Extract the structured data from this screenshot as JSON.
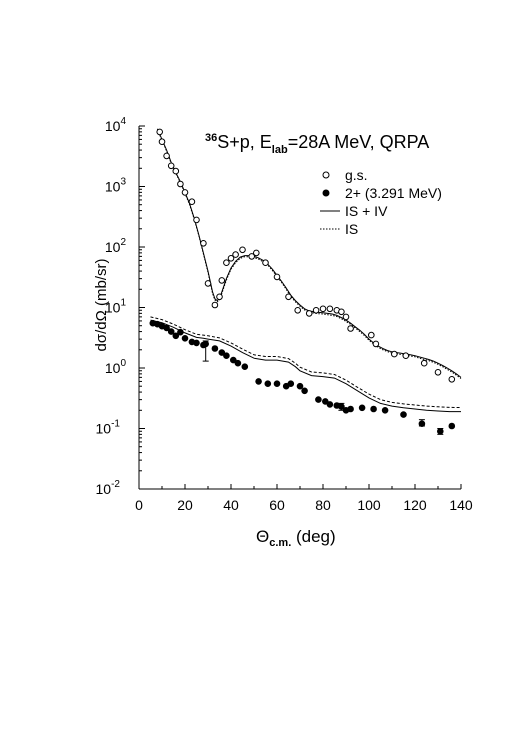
{
  "chart_data": {
    "type": "scatter",
    "title": {
      "mass": "36",
      "pre": "S+p, E",
      "sub": "lab",
      "post": "=28A MeV, QRPA"
    },
    "xlabel": {
      "main": "Θ",
      "sub": "c.m.",
      "unit": " (deg)"
    },
    "ylabel": "dσ/dΩ (mb/sr)",
    "xlim": [
      0,
      140
    ],
    "ylim": [
      0.01,
      10000
    ],
    "yscale": "log",
    "xticks": [
      0,
      20,
      40,
      60,
      80,
      100,
      120,
      140
    ],
    "yticks": [
      {
        "base": "10",
        "exp": "-2"
      },
      {
        "base": "10",
        "exp": "-1"
      },
      {
        "base": "10",
        "exp": "0"
      },
      {
        "base": "10",
        "exp": "1"
      },
      {
        "base": "10",
        "exp": "2"
      },
      {
        "base": "10",
        "exp": "3"
      },
      {
        "base": "10",
        "exp": "4"
      }
    ],
    "legend": {
      "position": "top-right",
      "entries": [
        {
          "label": "g.s.",
          "style": "open-circle"
        },
        {
          "label": "2+ (3.291 MeV)",
          "style": "filled-circle"
        },
        {
          "label": "IS + IV",
          "style": "solid-line"
        },
        {
          "label": "IS",
          "style": "dotted-line"
        }
      ]
    },
    "series": [
      {
        "name": "g.s.",
        "kind": "points",
        "marker": "open-circle",
        "x": [
          9,
          10,
          12,
          14,
          16,
          18,
          20,
          23,
          25,
          28,
          30,
          33,
          35,
          36,
          38,
          40,
          42,
          45,
          49,
          51,
          55,
          60,
          65,
          69,
          74,
          77,
          80,
          83,
          86,
          88,
          90,
          92,
          101,
          103,
          111,
          116,
          124,
          130,
          136
        ],
        "y": [
          8000,
          5500,
          3200,
          2200,
          1800,
          1100,
          800,
          560,
          280,
          115,
          25,
          11,
          15,
          28,
          55,
          65,
          75,
          90,
          70,
          80,
          55,
          32,
          15,
          9,
          8,
          9,
          9.5,
          9.5,
          9,
          8.5,
          7,
          4.5,
          3.5,
          2.5,
          1.7,
          1.6,
          1.2,
          0.85,
          0.65
        ]
      },
      {
        "name": "2+ (3.291 MeV)",
        "kind": "points",
        "marker": "filled-circle",
        "x": [
          6,
          8,
          10,
          12,
          14,
          16,
          18,
          20,
          23,
          25,
          28,
          29,
          33,
          36,
          38,
          41,
          43,
          46,
          52,
          56,
          60,
          64,
          66,
          70,
          72,
          78,
          81,
          83,
          86,
          88,
          90,
          92,
          97,
          102,
          107,
          115,
          123,
          131,
          136
        ],
        "y": [
          5.5,
          5.3,
          4.9,
          4.6,
          4,
          3.4,
          3.9,
          3.1,
          2.7,
          2.6,
          2.4,
          2.5,
          2.1,
          1.8,
          1.6,
          1.35,
          1.2,
          1.05,
          0.6,
          0.55,
          0.55,
          0.5,
          0.55,
          0.5,
          0.42,
          0.3,
          0.28,
          0.25,
          0.24,
          0.23,
          0.2,
          0.21,
          0.22,
          0.21,
          0.2,
          0.17,
          0.12,
          0.09,
          0.11
        ]
      },
      {
        "name": "g.s. IS + IV",
        "kind": "line",
        "style": "solid",
        "x": [
          8,
          10,
          12,
          14,
          16,
          18,
          20,
          22,
          24,
          26,
          28,
          30,
          32,
          33,
          34,
          35,
          36,
          38,
          40,
          42,
          44,
          46,
          48,
          50,
          52,
          54,
          56,
          58,
          60,
          62,
          64,
          66,
          68,
          70,
          72,
          74,
          76,
          78,
          80,
          82,
          84,
          86,
          88,
          90,
          92,
          94,
          96,
          98,
          100,
          102,
          104,
          106,
          108,
          110,
          112,
          114,
          116,
          118,
          120,
          122,
          124,
          126,
          128,
          130,
          132,
          134,
          136,
          138,
          140
        ],
        "y": [
          9000,
          6000,
          4000,
          2500,
          1700,
          1200,
          800,
          520,
          300,
          160,
          80,
          40,
          18,
          14,
          13,
          14,
          18,
          30,
          45,
          58,
          68,
          72,
          72,
          70,
          66,
          60,
          52,
          43,
          34,
          27,
          21,
          16,
          13,
          11,
          9.5,
          8.8,
          8.5,
          8.3,
          8.2,
          8,
          7.8,
          7.4,
          6.8,
          6.2,
          5.5,
          4.8,
          4.2,
          3.6,
          3.0,
          2.6,
          2.3,
          2.1,
          1.95,
          1.85,
          1.8,
          1.75,
          1.7,
          1.65,
          1.6,
          1.52,
          1.45,
          1.38,
          1.3,
          1.2,
          1.1,
          1.0,
          0.9,
          0.8,
          0.7
        ]
      },
      {
        "name": "g.s. IS",
        "kind": "line",
        "style": "dotted",
        "x": [
          8,
          10,
          12,
          14,
          16,
          18,
          20,
          22,
          24,
          26,
          28,
          30,
          32,
          33,
          34,
          35,
          36,
          38,
          40,
          42,
          44,
          46,
          48,
          50,
          52,
          54,
          56,
          58,
          60,
          62,
          64,
          66,
          68,
          70,
          72,
          74,
          76,
          78,
          80,
          82,
          84,
          86,
          88,
          90,
          92,
          94,
          96,
          98,
          100,
          102,
          104,
          106,
          108,
          110,
          112,
          114,
          116,
          118,
          120,
          122,
          124,
          126,
          128,
          130,
          132,
          134,
          136,
          138,
          140
        ],
        "y": [
          8700,
          5800,
          3850,
          2400,
          1650,
          1150,
          770,
          500,
          290,
          155,
          77,
          38,
          17,
          13.3,
          12.4,
          13.3,
          17,
          28.5,
          43,
          55,
          65,
          69,
          69,
          67,
          63,
          57,
          50,
          41,
          32.5,
          26,
          20,
          15.3,
          12.4,
          10.5,
          9.1,
          8.4,
          8.1,
          7.9,
          7.8,
          7.6,
          7.4,
          7.1,
          6.5,
          5.9,
          5.25,
          4.6,
          4.0,
          3.45,
          2.87,
          2.5,
          2.2,
          2.0,
          1.87,
          1.77,
          1.72,
          1.67,
          1.62,
          1.58,
          1.53,
          1.45,
          1.38,
          1.32,
          1.24,
          1.15,
          1.05,
          0.95,
          0.86,
          0.76,
          0.67
        ]
      },
      {
        "name": "2+ IS + IV",
        "kind": "line",
        "style": "solid",
        "x": [
          5,
          10,
          15,
          20,
          25,
          28,
          30,
          35,
          40,
          45,
          50,
          55,
          60,
          65,
          68,
          70,
          75,
          80,
          85,
          90,
          95,
          100,
          105,
          110,
          115,
          120,
          125,
          130,
          135,
          140
        ],
        "y": [
          6.2,
          5.6,
          4.7,
          3.8,
          3.2,
          3.1,
          3.0,
          2.8,
          2.3,
          1.8,
          1.45,
          1.35,
          1.35,
          1.25,
          1.05,
          0.9,
          0.75,
          0.72,
          0.68,
          0.55,
          0.42,
          0.32,
          0.26,
          0.235,
          0.22,
          0.21,
          0.2,
          0.195,
          0.19,
          0.19
        ]
      },
      {
        "name": "2+ IS",
        "kind": "line",
        "style": "dashed",
        "x": [
          5,
          10,
          15,
          20,
          25,
          28,
          30,
          35,
          40,
          45,
          50,
          55,
          60,
          65,
          68,
          70,
          75,
          80,
          85,
          90,
          95,
          100,
          105,
          110,
          115,
          120,
          125,
          130,
          135,
          140
        ],
        "y": [
          7.0,
          6.3,
          5.3,
          4.3,
          3.6,
          3.5,
          3.4,
          3.15,
          2.6,
          2.05,
          1.65,
          1.55,
          1.55,
          1.43,
          1.2,
          1.03,
          0.86,
          0.83,
          0.78,
          0.63,
          0.48,
          0.37,
          0.3,
          0.27,
          0.255,
          0.245,
          0.235,
          0.228,
          0.223,
          0.222
        ]
      }
    ],
    "error_bars": [
      {
        "x": 29,
        "y": 2.5,
        "low": 1.3,
        "high": 2.8
      },
      {
        "x": 88,
        "y": 0.23,
        "low": 0.2,
        "high": 0.26
      },
      {
        "x": 123,
        "y": 0.12,
        "low": 0.11,
        "high": 0.14
      },
      {
        "x": 131,
        "y": 0.09,
        "low": 0.08,
        "high": 0.1
      }
    ]
  }
}
